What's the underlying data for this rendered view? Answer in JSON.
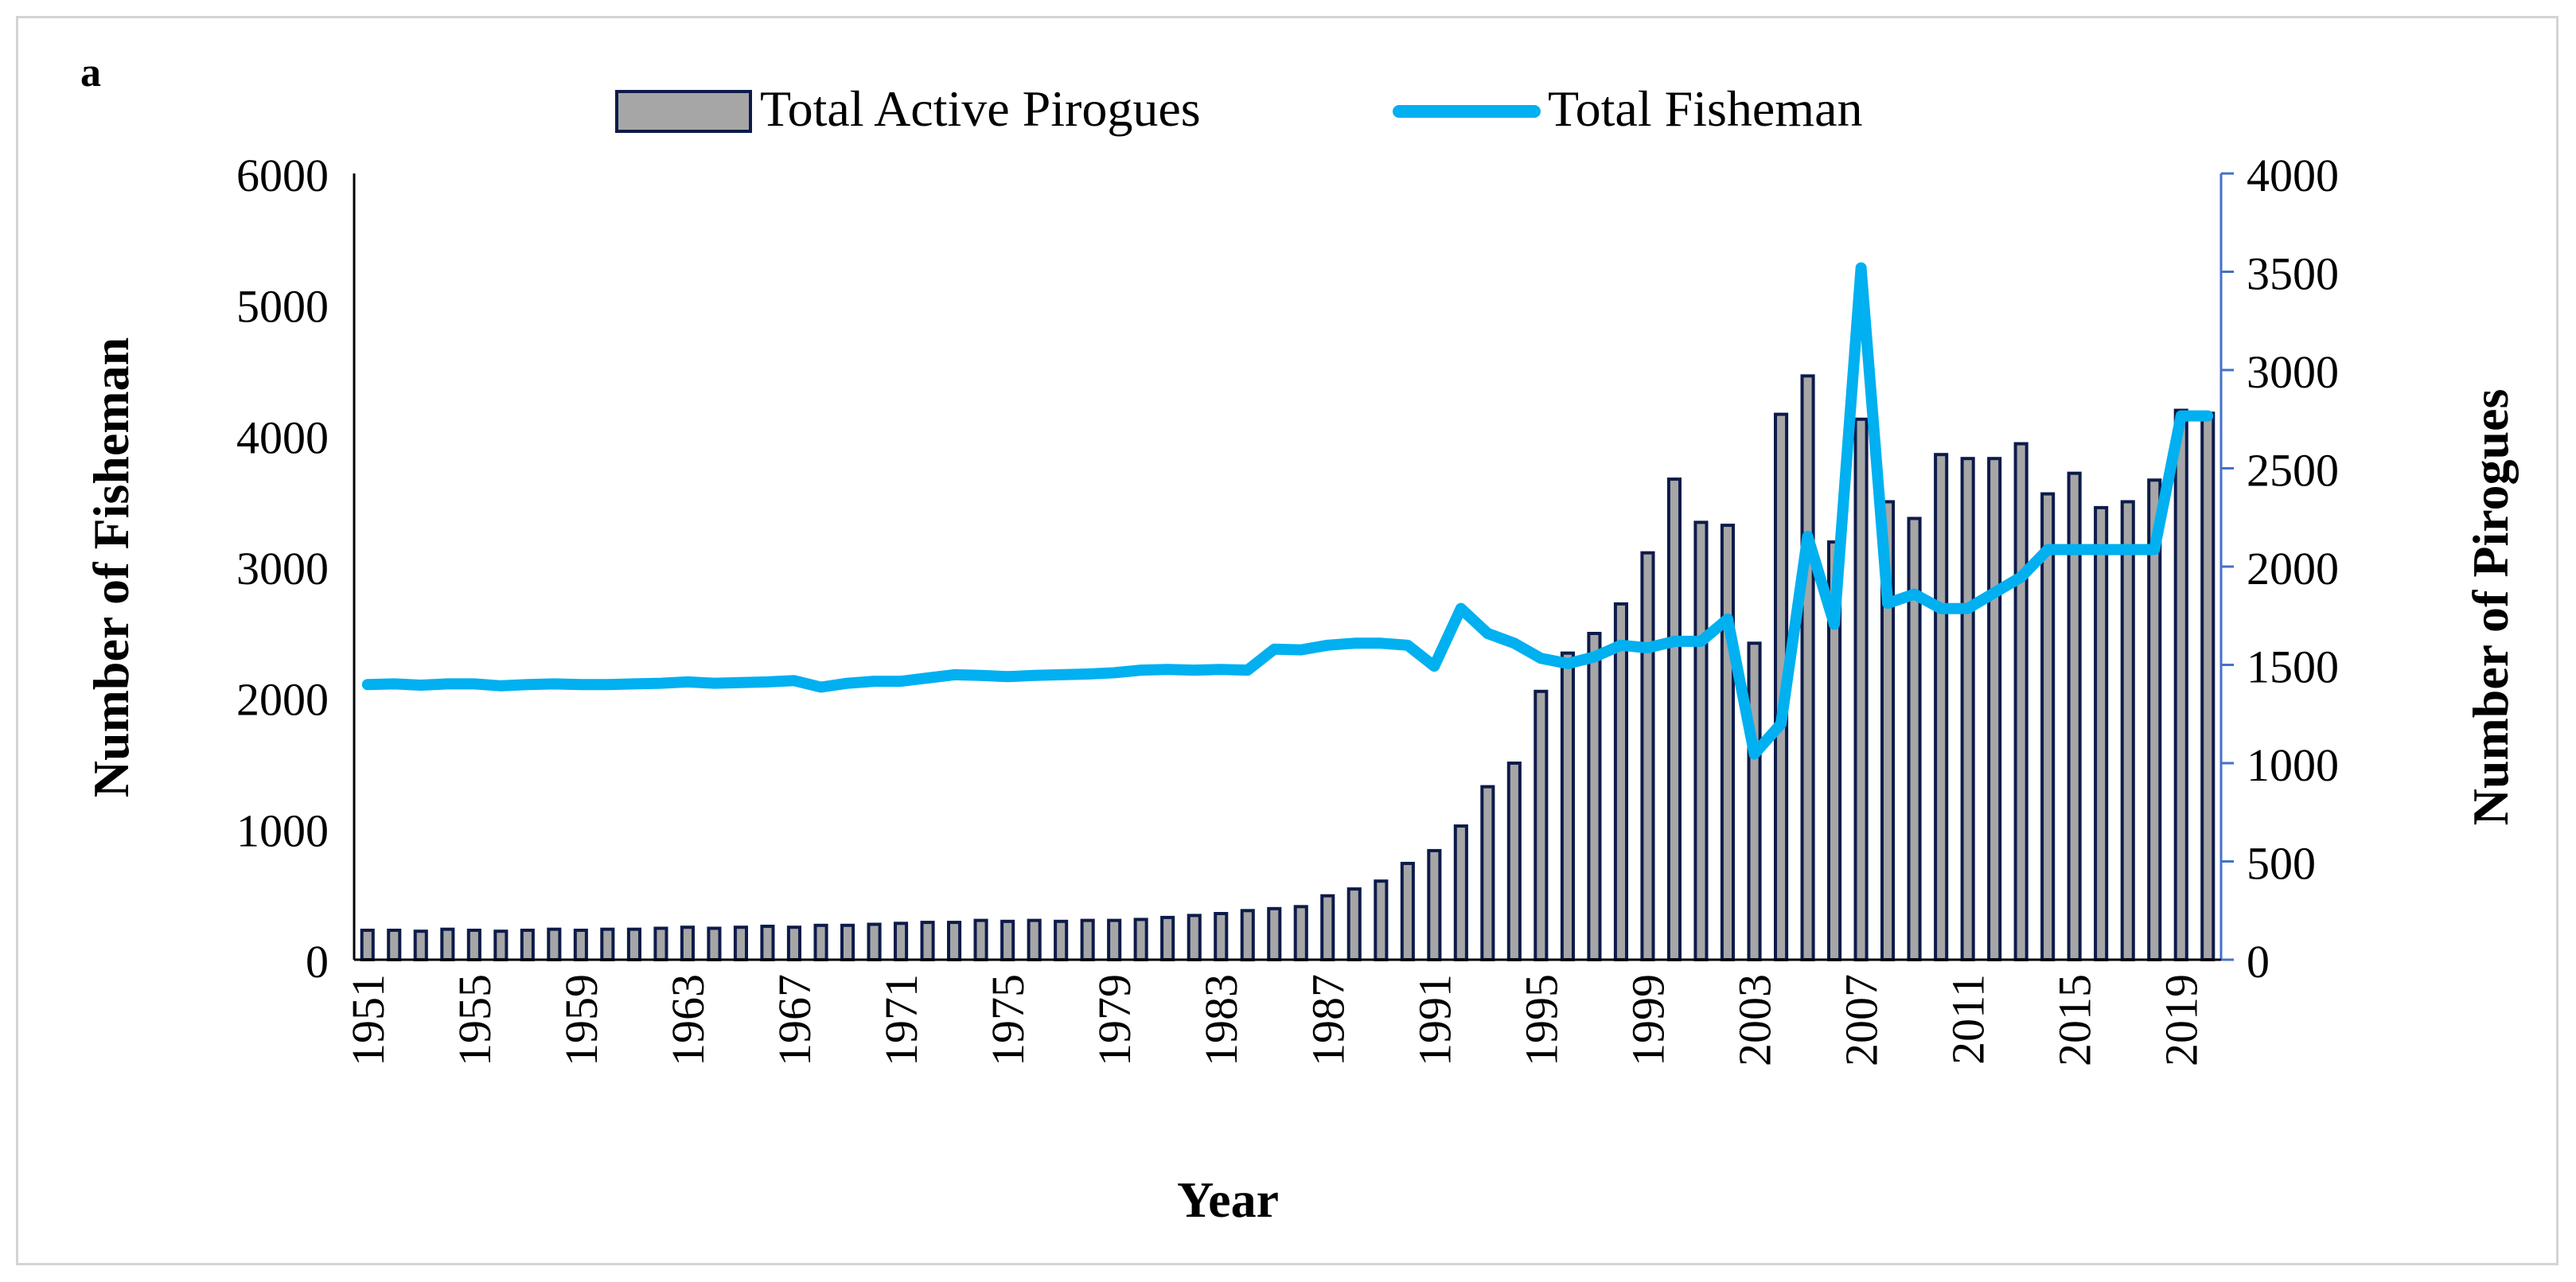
{
  "panel_label": "a",
  "colors": {
    "bar_fill": "#a6a6a6",
    "bar_stroke": "#0d1b4a",
    "line": "#00b0f0",
    "right_axis": "#4472c4",
    "left_axis": "#000000",
    "text": "#000000"
  },
  "chart_data": {
    "type": "bar",
    "title": "",
    "xlabel": "Year",
    "ylabel": "Number of Fisheman",
    "y2label": "Number of Pirogues",
    "ylim": [
      0,
      6000
    ],
    "y_ticks": [
      0,
      1000,
      2000,
      3000,
      4000,
      5000,
      6000
    ],
    "y2lim": [
      0,
      4000
    ],
    "y2_ticks": [
      0,
      500,
      1000,
      1500,
      2000,
      2500,
      3000,
      3500,
      4000
    ],
    "legend_position": "top-center",
    "x_tick_labels": [
      "1951",
      "1955",
      "1959",
      "1963",
      "1967",
      "1971",
      "1975",
      "1979",
      "1983",
      "1987",
      "1991",
      "1995",
      "1999",
      "2003",
      "2007",
      "2011",
      "2015",
      "2019"
    ],
    "categories": [
      1951,
      1952,
      1953,
      1954,
      1955,
      1956,
      1957,
      1958,
      1959,
      1960,
      1961,
      1962,
      1963,
      1964,
      1965,
      1966,
      1967,
      1968,
      1969,
      1970,
      1971,
      1972,
      1973,
      1974,
      1975,
      1976,
      1977,
      1978,
      1979,
      1980,
      1981,
      1982,
      1983,
      1984,
      1985,
      1986,
      1987,
      1988,
      1989,
      1990,
      1991,
      1992,
      1993,
      1994,
      1995,
      1996,
      1997,
      1998,
      1999,
      2000,
      2001,
      2002,
      2003,
      2004,
      2005,
      2006,
      2007,
      2008,
      2009,
      2010,
      2011,
      2012,
      2013,
      2014,
      2015,
      2016,
      2017,
      2018,
      2019,
      2020
    ],
    "series": [
      {
        "name": "Total Active Pirogues",
        "type": "bar",
        "axis": "right",
        "values": [
          150,
          150,
          145,
          155,
          150,
          145,
          150,
          155,
          150,
          155,
          155,
          160,
          165,
          160,
          165,
          170,
          165,
          175,
          175,
          180,
          185,
          190,
          190,
          200,
          195,
          200,
          195,
          200,
          200,
          205,
          215,
          225,
          235,
          250,
          260,
          270,
          325,
          360,
          400,
          490,
          555,
          680,
          880,
          1000,
          1365,
          1560,
          1660,
          1810,
          2070,
          2445,
          2225,
          2210,
          1610,
          2775,
          2970,
          2125,
          2750,
          2330,
          2245,
          2570,
          2550,
          2550,
          2625,
          2370,
          2475,
          2300,
          2330,
          2440,
          2795,
          2780
        ]
      },
      {
        "name": "Total Fisheman",
        "type": "line",
        "axis": "left",
        "values": [
          2100,
          2105,
          2095,
          2105,
          2105,
          2090,
          2100,
          2105,
          2100,
          2100,
          2105,
          2110,
          2120,
          2110,
          2115,
          2120,
          2130,
          2080,
          2110,
          2125,
          2125,
          2150,
          2175,
          2170,
          2160,
          2170,
          2175,
          2180,
          2190,
          2210,
          2215,
          2210,
          2215,
          2210,
          2370,
          2365,
          2400,
          2415,
          2415,
          2400,
          2240,
          2680,
          2490,
          2415,
          2300,
          2260,
          2310,
          2400,
          2380,
          2430,
          2430,
          2600,
          1570,
          1800,
          3230,
          2560,
          5280,
          2720,
          2790,
          2680,
          2680,
          2800,
          2920,
          3130,
          3130,
          3130,
          3130,
          3130,
          4150,
          4150
        ]
      }
    ]
  }
}
